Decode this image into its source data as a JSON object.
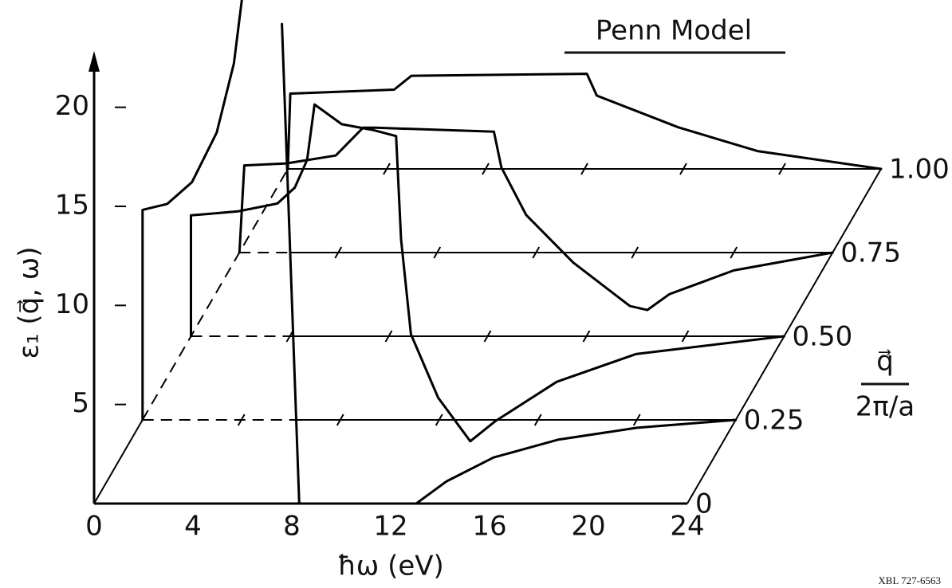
{
  "chart_data": {
    "type": "waterfall",
    "title": "Penn Model",
    "xlabel": "ħω (eV)",
    "ylabel": "ε₁ (q⃗, ω)",
    "zlabel": [
      "q⃗",
      "2π/a"
    ],
    "footer": "XBL 727-6563",
    "xlim": [
      0,
      24
    ],
    "xticks": [
      0,
      4,
      8,
      12,
      16,
      20,
      24
    ],
    "ylim": [
      0,
      22.6
    ],
    "yticks": [
      5,
      10,
      15,
      20
    ],
    "zlim": [
      0,
      1
    ],
    "zticks": [
      0,
      0.25,
      {
        "value": 0.5,
        "label": "0.50"
      },
      0.75,
      {
        "value": 1,
        "label": "1.00"
      }
    ],
    "color": "#000000",
    "series": [
      {
        "z": 0,
        "x": [
          7.6,
          8.3
        ],
        "values": [
          24.2,
          0
        ]
      },
      {
        "z": 0.25,
        "x": [
          0,
          0,
          1,
          2,
          3,
          3.7,
          4.1,
          null,
          11.1,
          12.3,
          14.2,
          16.8,
          20,
          24
        ],
        "values": [
          0,
          10.6,
          10.9,
          12,
          14.5,
          18,
          22,
          null,
          -4.2,
          -3.1,
          -1.9,
          -1,
          -0.4,
          0
        ]
      },
      {
        "z": 0.5,
        "x": [
          0,
          0,
          1.9,
          3.5,
          4.2,
          4.7,
          5,
          6.1,
          7.4,
          8.3,
          8.5,
          8.9,
          10,
          11.3,
          12.3,
          14.8,
          18,
          24
        ],
        "values": [
          0,
          6.1,
          6.3,
          6.7,
          7.5,
          8.9,
          11.7,
          10.7,
          10.4,
          10.1,
          4.9,
          0.1,
          -3.1,
          -5.3,
          -4.3,
          -2.3,
          -0.9,
          0
        ]
      },
      {
        "z": 0.75,
        "x": [
          0,
          0.2,
          1.9,
          3.9,
          5,
          5.5,
          10.3,
          10.6,
          11.6,
          13.5,
          15.8,
          16.5,
          17.4,
          20,
          24
        ],
        "values": [
          0,
          4.4,
          4.5,
          4.9,
          6.3,
          6.3,
          6.1,
          4.3,
          1.9,
          -0.5,
          -2.7,
          -2.9,
          -2.1,
          -0.9,
          0
        ]
      },
      {
        "z": 1,
        "x": [
          0,
          0.1,
          4.3,
          5,
          12.1,
          12.5,
          15.8,
          19,
          24
        ],
        "values": [
          0,
          3.8,
          4,
          4.7,
          4.8,
          3.7,
          2.1,
          0.9,
          0
        ]
      }
    ]
  }
}
